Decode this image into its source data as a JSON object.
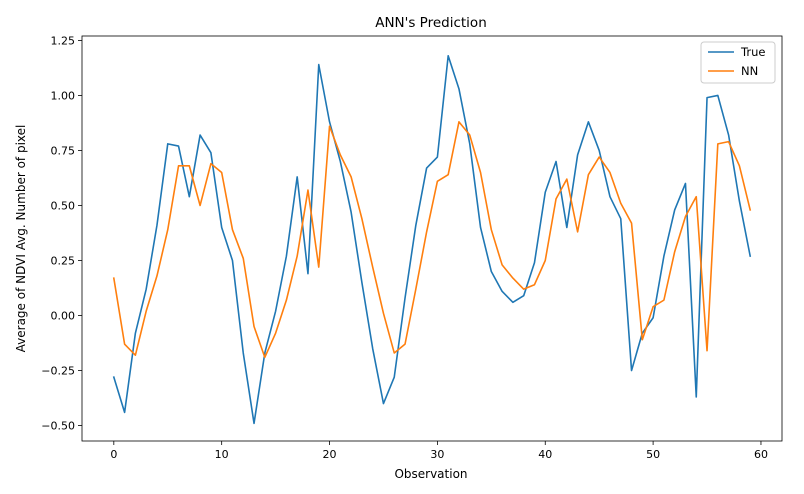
{
  "chart_data": {
    "type": "line",
    "title": "ANN's Prediction",
    "xlabel": "Observation",
    "ylabel": "Average of NDVI Avg. Number of pixel",
    "xlim": [
      -2.95,
      61.95
    ],
    "ylim": [
      -0.57,
      1.27
    ],
    "xticks": [
      0,
      10,
      20,
      30,
      40,
      50,
      60
    ],
    "yticks": [
      -0.5,
      -0.25,
      0.0,
      0.25,
      0.5,
      0.75,
      1.0,
      1.25
    ],
    "ytick_labels": [
      "−0.50",
      "−0.25",
      "0.00",
      "0.25",
      "0.50",
      "0.75",
      "1.00",
      "1.25"
    ],
    "legend_position": "top-right",
    "grid": false,
    "x": [
      0,
      1,
      2,
      3,
      4,
      5,
      6,
      7,
      8,
      9,
      10,
      11,
      12,
      13,
      14,
      15,
      16,
      17,
      18,
      19,
      20,
      21,
      22,
      23,
      24,
      25,
      26,
      27,
      28,
      29,
      30,
      31,
      32,
      33,
      34,
      35,
      36,
      37,
      38,
      39,
      40,
      41,
      42,
      43,
      44,
      45,
      46,
      47,
      48,
      49,
      50,
      51,
      52,
      53,
      54,
      55,
      56,
      57,
      58,
      59
    ],
    "series": [
      {
        "name": "True",
        "color": "#1f77b4",
        "values": [
          -0.28,
          -0.44,
          -0.08,
          0.12,
          0.41,
          0.78,
          0.77,
          0.54,
          0.82,
          0.74,
          0.4,
          0.25,
          -0.17,
          -0.49,
          -0.17,
          0.02,
          0.27,
          0.63,
          0.19,
          1.14,
          0.88,
          0.7,
          0.47,
          0.15,
          -0.15,
          -0.4,
          -0.28,
          0.08,
          0.41,
          0.67,
          0.72,
          1.18,
          1.03,
          0.78,
          0.4,
          0.2,
          0.11,
          0.06,
          0.09,
          0.24,
          0.56,
          0.7,
          0.4,
          0.73,
          0.88,
          0.75,
          0.54,
          0.44,
          -0.25,
          -0.08,
          -0.01,
          0.27,
          0.48,
          0.6,
          -0.37,
          0.99,
          1.0,
          0.82,
          0.52,
          0.27
        ]
      },
      {
        "name": "NN",
        "color": "#ff7f0e",
        "values": [
          0.17,
          -0.13,
          -0.18,
          0.02,
          0.18,
          0.39,
          0.68,
          0.68,
          0.5,
          0.69,
          0.65,
          0.39,
          0.26,
          -0.05,
          -0.19,
          -0.08,
          0.07,
          0.27,
          0.57,
          0.22,
          0.86,
          0.73,
          0.63,
          0.44,
          0.22,
          0.01,
          -0.17,
          -0.13,
          0.12,
          0.38,
          0.61,
          0.64,
          0.88,
          0.82,
          0.65,
          0.39,
          0.23,
          0.17,
          0.12,
          0.14,
          0.25,
          0.53,
          0.62,
          0.38,
          0.64,
          0.72,
          0.65,
          0.51,
          0.42,
          -0.11,
          0.04,
          0.07,
          0.29,
          0.45,
          0.54,
          -0.16,
          0.78,
          0.79,
          0.68,
          0.48
        ]
      }
    ]
  }
}
